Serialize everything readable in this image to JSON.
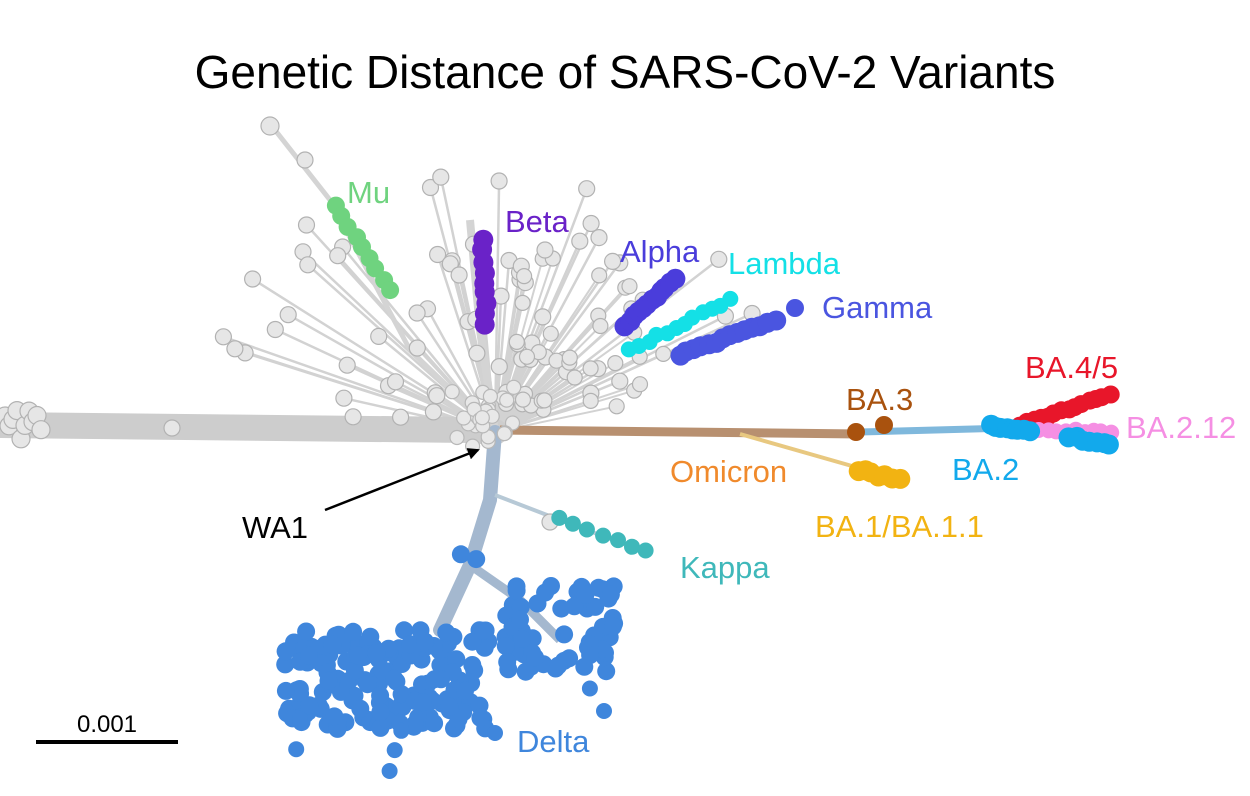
{
  "title": "Genetic Distance of SARS-CoV-2 Variants",
  "scale_bar_label": "0.001",
  "root_label": "WA1",
  "colors": {
    "background_node": "#e4e4e4",
    "trunk": "#c8c8c8",
    "omicron_stem": "#b89070",
    "delta_stem": "#9bb2cc"
  },
  "clades": [
    {
      "id": "mu",
      "label": "Mu",
      "color": "#6fd37f"
    },
    {
      "id": "beta",
      "label": "Beta",
      "color": "#6a22c8"
    },
    {
      "id": "alpha",
      "label": "Alpha",
      "color": "#4a3ddb"
    },
    {
      "id": "lambda",
      "label": "Lambda",
      "color": "#14e0e6"
    },
    {
      "id": "gamma",
      "label": "Gamma",
      "color": "#4a55e0"
    },
    {
      "id": "ba45",
      "label": "BA.4/5",
      "color": "#e8162a"
    },
    {
      "id": "ba3",
      "label": "BA.3",
      "color": "#a9520e"
    },
    {
      "id": "ba212",
      "label": "BA.2.12",
      "color": "#f58fe3"
    },
    {
      "id": "omicron",
      "label": "Omicron",
      "color": "#f08a2c"
    },
    {
      "id": "ba2",
      "label": "BA.2",
      "color": "#12a9ec"
    },
    {
      "id": "ba1",
      "label": "BA.1/BA.1.1",
      "color": "#f2b312"
    },
    {
      "id": "kappa",
      "label": "Kappa",
      "color": "#3fb8ba"
    },
    {
      "id": "delta",
      "label": "Delta",
      "color": "#3f86dc"
    }
  ]
}
